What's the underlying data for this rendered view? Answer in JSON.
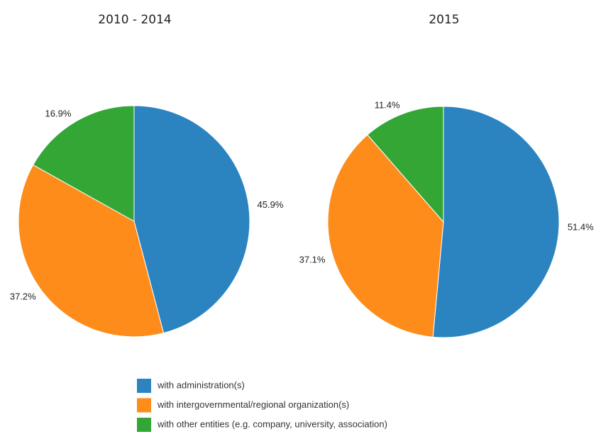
{
  "chart_data": [
    {
      "type": "pie",
      "title": "2010 - 2014",
      "values": [
        45.9,
        37.2,
        16.9
      ],
      "value_labels": [
        "45.9%",
        "37.2%",
        "16.9%"
      ]
    },
    {
      "type": "pie",
      "title": "2015",
      "values": [
        51.4,
        37.1,
        11.4
      ],
      "value_labels": [
        "51.4%",
        "37.1%",
        "11.4%"
      ]
    }
  ],
  "legend": {
    "categories": [
      "with administration(s)",
      "with intergovernmental/regional organization(s)",
      "with other entities (e.g. company, university, association)"
    ],
    "colors": [
      "#2b83c0",
      "#fd8c1a",
      "#34a636"
    ]
  }
}
